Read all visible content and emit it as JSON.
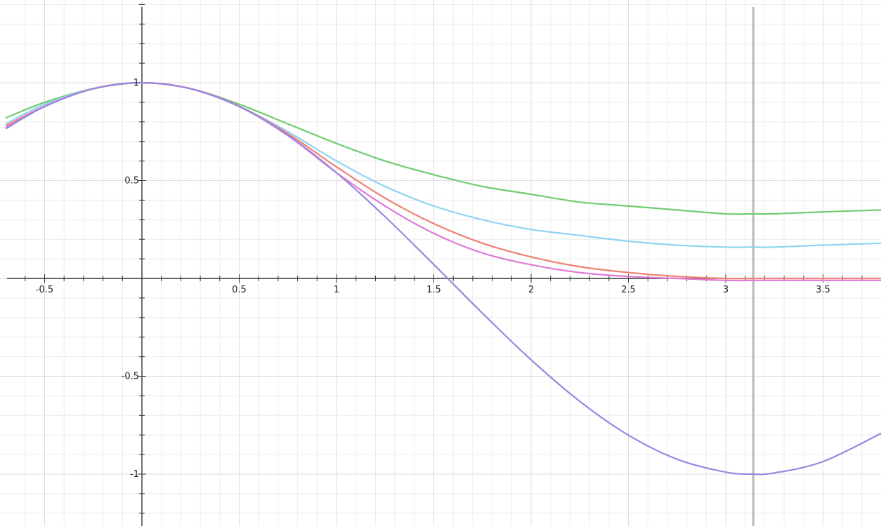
{
  "chart_data": {
    "type": "line",
    "title": "",
    "xlabel": "",
    "ylabel": "",
    "xlim": [
      -0.7,
      3.8
    ],
    "ylim": [
      -1.25,
      1.4
    ],
    "grid": true,
    "legend": "none",
    "x_tick_labels": [
      "-0.5",
      "0.5",
      "1",
      "1.5",
      "2",
      "2.5",
      "3",
      "3.5"
    ],
    "y_tick_labels": [
      "1",
      "0.5",
      "-0.5",
      "-1"
    ],
    "vertical_marker_x": 3.14159,
    "series": [
      {
        "color": "#6fcc6f",
        "x": [
          -0.7,
          -0.5,
          -0.25,
          0,
          0.25,
          0.5,
          0.75,
          1,
          1.25,
          1.5,
          1.75,
          2,
          2.25,
          2.5,
          2.75,
          3,
          3.14,
          3.25,
          3.5,
          3.8
        ],
        "y": [
          0.82,
          0.9,
          0.97,
          1.0,
          0.97,
          0.89,
          0.79,
          0.69,
          0.6,
          0.53,
          0.47,
          0.43,
          0.39,
          0.37,
          0.35,
          0.33,
          0.33,
          0.33,
          0.34,
          0.35
        ]
      },
      {
        "color": "#8ed4f0",
        "x": [
          -0.7,
          -0.5,
          -0.25,
          0,
          0.25,
          0.5,
          0.75,
          1,
          1.25,
          1.5,
          1.75,
          2,
          2.25,
          2.5,
          2.75,
          3,
          3.14,
          3.25,
          3.5,
          3.8
        ],
        "y": [
          0.79,
          0.89,
          0.97,
          1.0,
          0.97,
          0.88,
          0.75,
          0.6,
          0.47,
          0.37,
          0.3,
          0.25,
          0.22,
          0.19,
          0.17,
          0.16,
          0.16,
          0.16,
          0.17,
          0.18
        ]
      },
      {
        "color": "#f08070",
        "x": [
          -0.7,
          -0.5,
          -0.25,
          0,
          0.25,
          0.5,
          0.75,
          1,
          1.25,
          1.5,
          1.75,
          2,
          2.25,
          2.5,
          2.75,
          3,
          3.14,
          3.25,
          3.5,
          3.8
        ],
        "y": [
          0.78,
          0.88,
          0.97,
          1.0,
          0.97,
          0.88,
          0.74,
          0.57,
          0.41,
          0.28,
          0.18,
          0.11,
          0.06,
          0.03,
          0.01,
          0.0,
          0.0,
          0.0,
          0.0,
          0.0
        ]
      },
      {
        "color": "#e07ad8",
        "x": [
          -0.7,
          -0.5,
          -0.25,
          0,
          0.25,
          0.5,
          0.75,
          1,
          1.25,
          1.5,
          1.75,
          2,
          2.25,
          2.5,
          2.75,
          3,
          3.14,
          3.25,
          3.5,
          3.8
        ],
        "y": [
          0.77,
          0.88,
          0.97,
          1.0,
          0.97,
          0.88,
          0.73,
          0.54,
          0.37,
          0.23,
          0.13,
          0.07,
          0.03,
          0.01,
          0.0,
          -0.01,
          -0.01,
          -0.01,
          -0.01,
          -0.01
        ]
      },
      {
        "color": "#9a86e0",
        "x": [
          -0.7,
          -0.5,
          -0.25,
          0,
          0.25,
          0.5,
          0.75,
          1,
          1.25,
          1.5,
          1.75,
          2,
          2.25,
          2.5,
          2.75,
          3,
          3.14,
          3.25,
          3.5,
          3.8
        ],
        "y": [
          0.765,
          0.878,
          0.969,
          1.0,
          0.969,
          0.878,
          0.732,
          0.54,
          0.315,
          0.071,
          -0.178,
          -0.416,
          -0.628,
          -0.801,
          -0.924,
          -0.99,
          -1.0,
          -0.994,
          -0.936,
          -0.791
        ]
      }
    ]
  },
  "colors": {
    "axis": "#333333",
    "grid_minor": "#ececec",
    "grid_major": "#dcdcdc",
    "marker_line": "#b8b8b8"
  }
}
